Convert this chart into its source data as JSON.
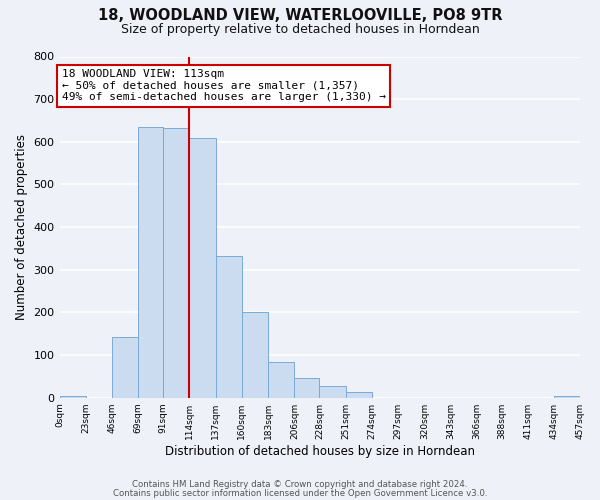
{
  "title": "18, WOODLAND VIEW, WATERLOOVILLE, PO8 9TR",
  "subtitle": "Size of property relative to detached houses in Horndean",
  "xlabel": "Distribution of detached houses by size in Horndean",
  "ylabel": "Number of detached properties",
  "bar_left_edges": [
    0,
    23,
    46,
    69,
    91,
    114,
    137,
    160,
    183,
    206,
    228,
    251,
    274,
    297,
    320,
    343,
    366,
    388,
    411,
    434
  ],
  "bar_widths": [
    23,
    23,
    23,
    22,
    23,
    23,
    23,
    23,
    23,
    22,
    23,
    23,
    23,
    23,
    23,
    23,
    22,
    23,
    23,
    23
  ],
  "bar_heights": [
    3,
    0,
    143,
    635,
    632,
    610,
    332,
    201,
    84,
    47,
    28,
    13,
    0,
    0,
    0,
    0,
    0,
    0,
    0,
    3
  ],
  "bar_color": "#ccdcf0",
  "bar_edge_color": "#7aaad4",
  "property_line_x": 114,
  "property_line_color": "#cc0000",
  "tick_labels": [
    "0sqm",
    "23sqm",
    "46sqm",
    "69sqm",
    "91sqm",
    "114sqm",
    "137sqm",
    "160sqm",
    "183sqm",
    "206sqm",
    "228sqm",
    "251sqm",
    "274sqm",
    "297sqm",
    "320sqm",
    "343sqm",
    "366sqm",
    "388sqm",
    "411sqm",
    "434sqm",
    "457sqm"
  ],
  "annotation_title": "18 WOODLAND VIEW: 113sqm",
  "annotation_line1": "← 50% of detached houses are smaller (1,357)",
  "annotation_line2": "49% of semi-detached houses are larger (1,330) →",
  "annotation_box_facecolor": "#ffffff",
  "annotation_box_edgecolor": "#cc0000",
  "ylim": [
    0,
    800
  ],
  "yticks": [
    0,
    100,
    200,
    300,
    400,
    500,
    600,
    700,
    800
  ],
  "footer1": "Contains HM Land Registry data © Crown copyright and database right 2024.",
  "footer2": "Contains public sector information licensed under the Open Government Licence v3.0.",
  "bg_color": "#eef2f8",
  "grid_color": "#ffffff",
  "title_fontsize": 10.5,
  "subtitle_fontsize": 9
}
